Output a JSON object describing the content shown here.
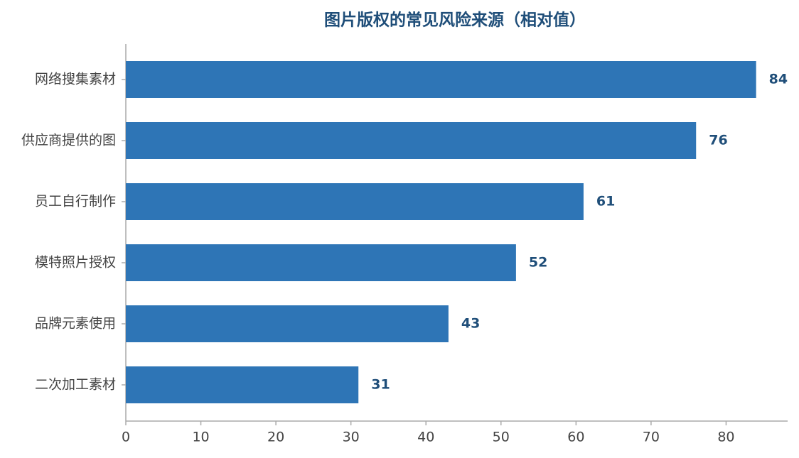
{
  "chart_data": {
    "type": "bar",
    "orientation": "horizontal",
    "title": "图片版权的常见风险来源（相对值）",
    "categories": [
      "网络搜集素材",
      "供应商提供的图",
      "员工自行制作",
      "模特照片授权",
      "品牌元素使用",
      "二次加工素材"
    ],
    "values": [
      84,
      76,
      61,
      52,
      43,
      31
    ],
    "color": "#2e75b6",
    "xlim": [
      0,
      88.2
    ],
    "xticks": [
      0,
      10,
      20,
      30,
      40,
      50,
      60,
      70,
      80
    ],
    "grid": false
  }
}
